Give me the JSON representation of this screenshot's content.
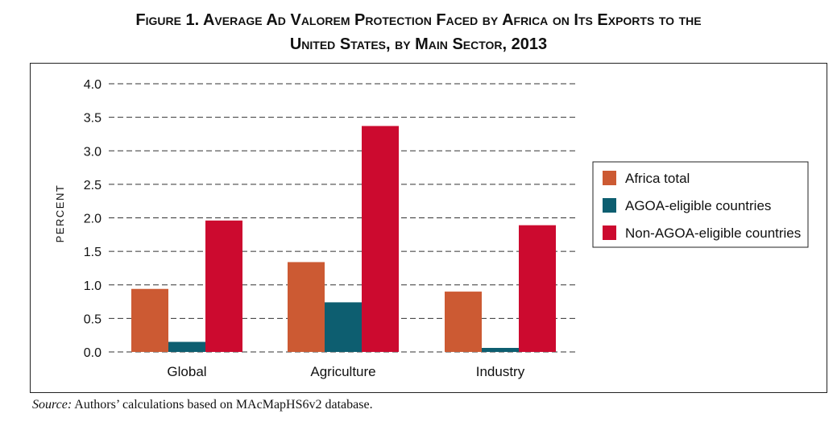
{
  "title": {
    "line1": "Figure 1. Average Ad Valorem Protection Faced by Africa on Its Exports to the",
    "line2": "United States, by Main Sector, 2013"
  },
  "source": {
    "label": "Source:",
    "text": " Authors’ calculations based on MAcMapHS6v2 database."
  },
  "colors": {
    "africa_total": "#cc5a33",
    "agoa_eligible": "#0d5e70",
    "non_agoa_eligible": "#cc0a2f",
    "grid": "#333333"
  },
  "chart_data": {
    "type": "bar",
    "title": "Figure 1. Average Ad Valorem Protection Faced by Africa on Its Exports to the United States, by Main Sector, 2013",
    "xlabel": "",
    "ylabel": "PERCENT",
    "categories": [
      "Global",
      "Agriculture",
      "Industry"
    ],
    "series": [
      {
        "name": "Africa total",
        "values": [
          0.94,
          1.34,
          0.9
        ]
      },
      {
        "name": "AGOA-eligible countries",
        "values": [
          0.15,
          0.74,
          0.06
        ]
      },
      {
        "name": "Non-AGOA-eligible countries",
        "values": [
          1.96,
          3.37,
          1.89
        ]
      }
    ],
    "ylim": [
      0,
      4.0
    ],
    "yticks": [
      "0.0",
      "0.5",
      "1.0",
      "1.5",
      "2.0",
      "2.5",
      "3.0",
      "3.5",
      "4.0"
    ],
    "grid": true,
    "grid_style": "dashed",
    "legend_position": "right"
  }
}
